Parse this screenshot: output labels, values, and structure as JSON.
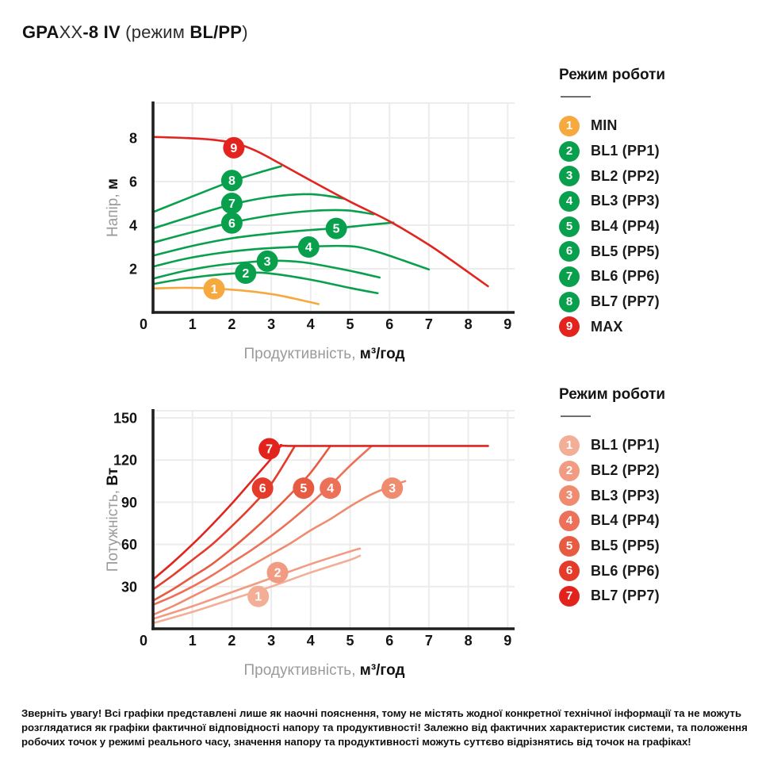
{
  "title": {
    "brand": "GPA",
    "model_thin": "XX",
    "model_bold": "-8 IV",
    "mode_prefix": " (режим ",
    "mode_bold": "BL/PP",
    "mode_suffix": ")"
  },
  "colors": {
    "green": "#09A04D",
    "orange": "#F6A93E",
    "red": "#E3241E",
    "grid": "#ECECEC",
    "axis": "#1F1F1F",
    "gray_text": "#9A9A9A",
    "dark_text": "#141414"
  },
  "legend_top": {
    "header": "Режим роботи",
    "items": [
      {
        "num": "1",
        "label": "MIN",
        "color": "#F6A93E"
      },
      {
        "num": "2",
        "label": "BL1 (PP1)",
        "color": "#09A04D"
      },
      {
        "num": "3",
        "label": "BL2 (PP2)",
        "color": "#09A04D"
      },
      {
        "num": "4",
        "label": "BL3 (PP3)",
        "color": "#09A04D"
      },
      {
        "num": "5",
        "label": "BL4 (PP4)",
        "color": "#09A04D"
      },
      {
        "num": "6",
        "label": "BL5 (PP5)",
        "color": "#09A04D"
      },
      {
        "num": "7",
        "label": "BL6 (PP6)",
        "color": "#09A04D"
      },
      {
        "num": "8",
        "label": "BL7 (PP7)",
        "color": "#09A04D"
      },
      {
        "num": "9",
        "label": "MAX",
        "color": "#E3241E"
      }
    ]
  },
  "legend_bottom": {
    "header": "Режим роботи",
    "items": [
      {
        "num": "1",
        "label": "BL1 (PP1)",
        "color": "#F3AE96"
      },
      {
        "num": "2",
        "label": "BL2 (PP2)",
        "color": "#F19B82"
      },
      {
        "num": "3",
        "label": "BL3 (PP3)",
        "color": "#EF8C70"
      },
      {
        "num": "4",
        "label": "BL4 (PP4)",
        "color": "#EC7158"
      },
      {
        "num": "5",
        "label": "BL5 (PP5)",
        "color": "#E85B43"
      },
      {
        "num": "6",
        "label": "BL6 (PP6)",
        "color": "#E43B2A"
      },
      {
        "num": "7",
        "label": "BL7 (PP7)",
        "color": "#E2231D"
      }
    ]
  },
  "warning": "Зверніть увагу! Всі графіки представлені лише як наочні пояснення, тому не містять жодної конкретної технічної інформації та не можуть розглядатися як графіки фактичної відповідності напору та продуктивності! Залежно від фактичних характеристик системи, та положення робочих точок у режимі реального часу, значення напору та продуктивності можуть суттєво відрізнятись від точок на графіках!",
  "chart_data": [
    {
      "type": "line",
      "title": "Напір vs Продуктивність",
      "xlabel_gray": "Продуктивність,",
      "xlabel_bold": "м³/год",
      "ylabel_gray": "Напір,",
      "ylabel_bold": "м",
      "xlim": [
        0,
        9
      ],
      "ylim": [
        0,
        9.6
      ],
      "xticks": [
        0,
        1,
        2,
        3,
        4,
        5,
        6,
        7,
        8,
        9
      ],
      "yticks": [
        2,
        4,
        6,
        8
      ],
      "grid": true,
      "legend_position": "right",
      "series": [
        {
          "name": "MIN",
          "num": "1",
          "color": "#F6A93E",
          "badge": [
            1.55,
            1.08
          ],
          "points": [
            [
              0,
              1.1
            ],
            [
              0.8,
              1.13
            ],
            [
              1.6,
              1.09
            ],
            [
              2.4,
              0.98
            ],
            [
              3.2,
              0.78
            ],
            [
              4.2,
              0.38
            ]
          ]
        },
        {
          "name": "BL1 (PP1)",
          "num": "2",
          "color": "#09A04D",
          "badge": [
            2.35,
            1.8
          ],
          "points": [
            [
              0,
              1.3
            ],
            [
              0.8,
              1.55
            ],
            [
              1.6,
              1.72
            ],
            [
              2.4,
              1.82
            ],
            [
              3,
              1.78
            ],
            [
              4,
              1.5
            ],
            [
              5,
              1.12
            ],
            [
              5.7,
              0.88
            ]
          ]
        },
        {
          "name": "BL2 (PP2)",
          "num": "3",
          "color": "#09A04D",
          "badge": [
            2.9,
            2.35
          ],
          "points": [
            [
              0,
              1.55
            ],
            [
              0.8,
              1.9
            ],
            [
              1.6,
              2.15
            ],
            [
              2.4,
              2.3
            ],
            [
              3.1,
              2.37
            ],
            [
              3.8,
              2.3
            ],
            [
              4.6,
              2.05
            ],
            [
              5.2,
              1.83
            ],
            [
              5.75,
              1.6
            ]
          ]
        },
        {
          "name": "BL3 (PP3)",
          "num": "4",
          "color": "#09A04D",
          "badge": [
            3.95,
            3.0
          ],
          "points": [
            [
              0,
              2.1
            ],
            [
              0.8,
              2.45
            ],
            [
              1.6,
              2.7
            ],
            [
              2.4,
              2.87
            ],
            [
              3.2,
              2.97
            ],
            [
              4,
              3.02
            ],
            [
              4.7,
              3.05
            ],
            [
              5.2,
              3.0
            ],
            [
              5.8,
              2.72
            ],
            [
              6.4,
              2.35
            ],
            [
              7,
              1.97
            ]
          ]
        },
        {
          "name": "BL4 (PP4)",
          "num": "5",
          "color": "#09A04D",
          "badge": [
            4.65,
            3.85
          ],
          "points": [
            [
              0,
              2.6
            ],
            [
              1,
              3.05
            ],
            [
              2,
              3.4
            ],
            [
              3,
              3.62
            ],
            [
              4,
              3.78
            ],
            [
              4.65,
              3.86
            ],
            [
              5.4,
              4.0
            ],
            [
              6.1,
              4.12
            ]
          ]
        },
        {
          "name": "BL5 (PP5)",
          "num": "6",
          "color": "#09A04D",
          "badge": [
            2.0,
            4.1
          ],
          "points": [
            [
              0,
              3.2
            ],
            [
              1,
              3.68
            ],
            [
              2,
              4.12
            ],
            [
              3,
              4.45
            ],
            [
              4,
              4.65
            ],
            [
              4.9,
              4.68
            ],
            [
              5.6,
              4.5
            ]
          ]
        },
        {
          "name": "BL6 (PP6)",
          "num": "7",
          "color": "#09A04D",
          "badge": [
            2.0,
            5.0
          ],
          "points": [
            [
              0,
              3.85
            ],
            [
              1,
              4.42
            ],
            [
              2,
              4.95
            ],
            [
              3,
              5.3
            ],
            [
              4,
              5.42
            ],
            [
              4.85,
              5.22
            ]
          ]
        },
        {
          "name": "BL7 (PP7)",
          "num": "8",
          "color": "#09A04D",
          "badge": [
            2.0,
            6.05
          ],
          "points": [
            [
              0,
              4.6
            ],
            [
              1,
              5.32
            ],
            [
              2,
              6.02
            ],
            [
              2.7,
              6.42
            ],
            [
              3.25,
              6.7
            ]
          ]
        },
        {
          "name": "MAX",
          "num": "9",
          "color": "#E3241E",
          "badge": [
            2.05,
            7.55
          ],
          "points": [
            [
              0,
              8.05
            ],
            [
              0.8,
              8.0
            ],
            [
              1.5,
              7.92
            ],
            [
              2.1,
              7.75
            ],
            [
              2.6,
              7.42
            ],
            [
              3.2,
              6.85
            ],
            [
              4,
              6.05
            ],
            [
              5,
              5.08
            ],
            [
              6,
              4.18
            ],
            [
              7,
              3.1
            ],
            [
              7.8,
              2.1
            ],
            [
              8.5,
              1.2
            ]
          ]
        }
      ]
    },
    {
      "type": "line",
      "title": "Потужність vs Продуктивність",
      "xlabel_gray": "Продуктивність,",
      "xlabel_bold": "м³/год",
      "ylabel_gray": "Потужність,",
      "ylabel_bold": "Вт",
      "xlim": [
        0,
        9
      ],
      "ylim": [
        0,
        155
      ],
      "xticks": [
        0,
        1,
        2,
        3,
        4,
        5,
        6,
        7,
        8,
        9
      ],
      "yticks": [
        30,
        60,
        90,
        120,
        150
      ],
      "grid": true,
      "legend_position": "right",
      "series": [
        {
          "name": "BL1 (PP1)",
          "num": "1",
          "color": "#F3AE96",
          "badge": [
            2.67,
            23
          ],
          "points": [
            [
              0,
              4
            ],
            [
              1,
              12
            ],
            [
              2,
              21
            ],
            [
              3,
              30
            ],
            [
              4,
              40
            ],
            [
              5,
              49
            ],
            [
              5.25,
              52
            ]
          ]
        },
        {
          "name": "BL2 (PP2)",
          "num": "2",
          "color": "#F19B82",
          "badge": [
            3.16,
            40
          ],
          "points": [
            [
              0,
              7
            ],
            [
              1,
              16
            ],
            [
              2,
              26
            ],
            [
              3,
              36
            ],
            [
              4,
              46
            ],
            [
              5,
              55
            ],
            [
              5.25,
              57
            ]
          ]
        },
        {
          "name": "BL3 (PP3)",
          "num": "3",
          "color": "#EF8C70",
          "badge": [
            6.07,
            100
          ],
          "points": [
            [
              0,
              10
            ],
            [
              0.5,
              16
            ],
            [
              1,
              23
            ],
            [
              1.5,
              30
            ],
            [
              2,
              37
            ],
            [
              2.5,
              45
            ],
            [
              3,
              53
            ],
            [
              3.5,
              61
            ],
            [
              4,
              70
            ],
            [
              4.5,
              78
            ],
            [
              5,
              87
            ],
            [
              5.5,
              95
            ],
            [
              6,
              101
            ],
            [
              6.4,
              105
            ]
          ]
        },
        {
          "name": "BL4 (PP4)",
          "num": "4",
          "color": "#EC7158",
          "badge": [
            4.5,
            100
          ],
          "points": [
            [
              0,
              17
            ],
            [
              0.5,
              23
            ],
            [
              1,
              30
            ],
            [
              1.5,
              38
            ],
            [
              2,
              47
            ],
            [
              2.5,
              56
            ],
            [
              3,
              66
            ],
            [
              3.5,
              77
            ],
            [
              4,
              89
            ],
            [
              4.5,
              102
            ],
            [
              5,
              116
            ],
            [
              5.55,
              130
            ]
          ]
        },
        {
          "name": "BL5 (PP5)",
          "num": "5",
          "color": "#E85B43",
          "badge": [
            3.82,
            100
          ],
          "points": [
            [
              0,
              20
            ],
            [
              0.5,
              28
            ],
            [
              1,
              37
            ],
            [
              1.5,
              46
            ],
            [
              2,
              57
            ],
            [
              2.5,
              69
            ],
            [
              3,
              82
            ],
            [
              3.5,
              96
            ],
            [
              4,
              111
            ],
            [
              4.5,
              130
            ]
          ]
        },
        {
          "name": "BL6 (PP6)",
          "num": "6",
          "color": "#E43B2A",
          "badge": [
            2.78,
            100
          ],
          "points": [
            [
              0,
              28
            ],
            [
              0.5,
              38
            ],
            [
              1,
              49
            ],
            [
              1.5,
              60
            ],
            [
              2,
              73
            ],
            [
              2.5,
              87
            ],
            [
              3,
              103
            ],
            [
              3.6,
              130
            ]
          ]
        },
        {
          "name": "BL7 (PP7)",
          "num": "7",
          "color": "#E2231D",
          "badge": [
            2.95,
            128
          ],
          "points": [
            [
              0,
              35
            ],
            [
              0.5,
              47
            ],
            [
              1,
              60
            ],
            [
              1.5,
              74
            ],
            [
              2,
              89
            ],
            [
              2.5,
              105
            ],
            [
              3,
              121
            ],
            [
              3.25,
              130
            ],
            [
              3.5,
              130
            ],
            [
              6,
              130
            ],
            [
              8.5,
              130
            ]
          ]
        }
      ]
    }
  ]
}
